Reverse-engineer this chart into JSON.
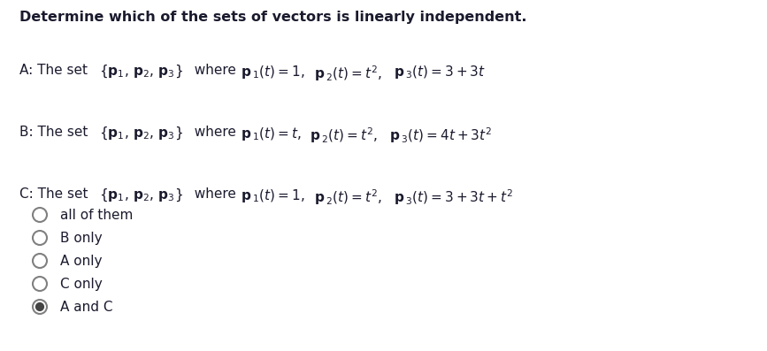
{
  "title": "Determine which of the sets of vectors is linearly independent.",
  "background_color": "#ffffff",
  "text_color": "#1a1a2e",
  "radio_color": "#808080",
  "figsize": [
    8.67,
    3.97
  ],
  "dpi": 100,
  "options": [
    {
      "label": "all of them",
      "selected": false
    },
    {
      "label": "B only",
      "selected": false
    },
    {
      "label": "A only",
      "selected": false
    },
    {
      "label": "C only",
      "selected": false
    },
    {
      "label": "A and C",
      "selected": true
    }
  ]
}
